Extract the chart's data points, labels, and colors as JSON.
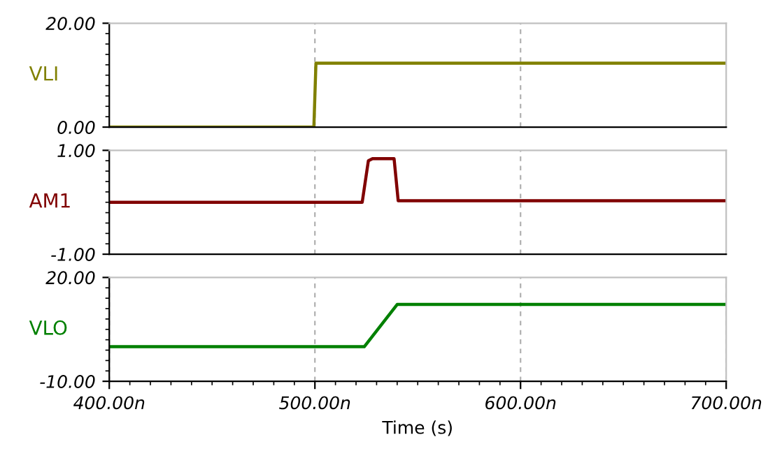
{
  "chart_data": [
    {
      "type": "line",
      "ylabel": "VLI",
      "xlim": [
        400,
        700
      ],
      "xticks": [
        {
          "value": 500,
          "label": null
        },
        {
          "value": 600,
          "label": null
        }
      ],
      "ylim": [
        0,
        20
      ],
      "yticks": [
        {
          "value": 0,
          "label": "0.00"
        },
        {
          "value": 20,
          "label": "20.00"
        }
      ],
      "grid": "x",
      "tick_labels": "y",
      "series": [
        {
          "color": "#808000",
          "x": [
            400,
            499.5,
            500.5,
            700
          ],
          "values": [
            0,
            0,
            12.3,
            12.3
          ]
        }
      ]
    },
    {
      "type": "line",
      "ylabel": "AM1",
      "xlim": [
        400,
        700
      ],
      "xticks": [
        {
          "value": 500,
          "label": null
        },
        {
          "value": 600,
          "label": null
        }
      ],
      "ylim": [
        -1,
        1
      ],
      "yticks": [
        {
          "value": -1,
          "label": "-1.00"
        },
        {
          "value": 1,
          "label": "1.00"
        }
      ],
      "grid": "x",
      "tick_labels": "y",
      "series": [
        {
          "color": "#800000",
          "x": [
            400,
            523,
            526,
            528,
            538.5,
            540.5,
            700
          ],
          "values": [
            0,
            0,
            0.8,
            0.84,
            0.84,
            0.03,
            0.03
          ]
        }
      ]
    },
    {
      "type": "line",
      "ylabel": "VLO",
      "xlabel": "Time (s)",
      "xlim": [
        400,
        700
      ],
      "xticks": [
        {
          "value": 400,
          "label": "400.00n"
        },
        {
          "value": 500,
          "label": "500.00n"
        },
        {
          "value": 600,
          "label": "600.00n"
        },
        {
          "value": 700,
          "label": "700.00n"
        }
      ],
      "ylim": [
        -10,
        20
      ],
      "yticks": [
        {
          "value": -10,
          "label": "-10.00"
        },
        {
          "value": 20,
          "label": "20.00"
        }
      ],
      "grid": "x",
      "series": [
        {
          "color": "#008000",
          "x": [
            400,
            524,
            540,
            700
          ],
          "values": [
            0,
            0,
            12.2,
            12.2
          ]
        }
      ]
    }
  ]
}
